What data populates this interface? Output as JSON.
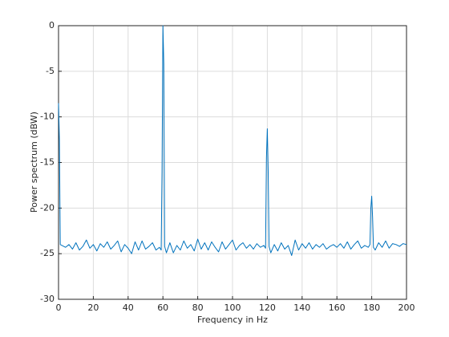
{
  "chart_data": {
    "type": "line",
    "xlabel": "Frequency in Hz",
    "ylabel": "Power spectrum (dBW)",
    "xlim": [
      0,
      200
    ],
    "ylim": [
      -30,
      0
    ],
    "xticks": [
      0,
      20,
      40,
      60,
      80,
      100,
      120,
      140,
      160,
      180,
      200
    ],
    "yticks": [
      -30,
      -25,
      -20,
      -15,
      -10,
      -5,
      0
    ],
    "grid": true,
    "x": [
      0,
      0.5,
      1,
      2,
      4,
      6,
      8,
      10,
      12,
      14,
      16,
      18,
      20,
      22,
      24,
      26,
      28,
      30,
      32,
      34,
      36,
      38,
      40,
      42,
      44,
      46,
      48,
      50,
      52,
      54,
      56,
      58,
      59,
      59.5,
      60,
      60.5,
      61,
      62,
      64,
      66,
      68,
      70,
      72,
      74,
      76,
      78,
      80,
      82,
      84,
      86,
      88,
      90,
      92,
      94,
      96,
      98,
      100,
      102,
      104,
      106,
      108,
      110,
      112,
      114,
      116,
      118,
      119,
      119.5,
      120,
      120.5,
      121,
      122,
      124,
      126,
      128,
      130,
      132,
      134,
      136,
      138,
      140,
      142,
      144,
      146,
      148,
      150,
      152,
      154,
      156,
      158,
      160,
      162,
      164,
      166,
      168,
      170,
      172,
      174,
      176,
      178,
      179,
      179.5,
      180,
      180.5,
      181,
      182,
      184,
      186,
      188,
      190,
      192,
      194,
      196,
      198,
      200
    ],
    "series": [
      {
        "color": "#0072bd",
        "values": [
          -8.5,
          -12.5,
          -24.0,
          -24.1,
          -24.3,
          -24.0,
          -24.5,
          -23.8,
          -24.6,
          -24.2,
          -23.5,
          -24.4,
          -24.0,
          -24.7,
          -23.9,
          -24.3,
          -23.7,
          -24.5,
          -24.1,
          -23.6,
          -24.8,
          -24.0,
          -24.4,
          -25.0,
          -23.7,
          -24.6,
          -23.6,
          -24.5,
          -24.2,
          -23.8,
          -24.6,
          -24.3,
          -24.6,
          -16,
          0,
          -4.2,
          -24.2,
          -24.9,
          -23.8,
          -24.9,
          -24.1,
          -24.6,
          -23.6,
          -24.4,
          -24.0,
          -24.7,
          -23.4,
          -24.5,
          -23.8,
          -24.6,
          -23.7,
          -24.3,
          -24.8,
          -23.7,
          -24.5,
          -24.0,
          -23.5,
          -24.6,
          -24.1,
          -23.8,
          -24.4,
          -24.0,
          -24.5,
          -23.9,
          -24.3,
          -24.1,
          -24.4,
          -14.5,
          -11.3,
          -16,
          -24.2,
          -24.9,
          -24.0,
          -24.7,
          -23.8,
          -24.5,
          -24.1,
          -25.2,
          -23.5,
          -24.6,
          -23.9,
          -24.4,
          -23.8,
          -24.5,
          -24.0,
          -24.3,
          -23.9,
          -24.5,
          -24.2,
          -24.0,
          -24.3,
          -23.9,
          -24.4,
          -23.7,
          -24.5,
          -24.0,
          -23.6,
          -24.4,
          -24.1,
          -24.3,
          -24.0,
          -20,
          -18.7,
          -21,
          -24.3,
          -24.6,
          -23.8,
          -24.3,
          -23.6,
          -24.4,
          -23.9,
          -24.0,
          -24.2,
          -23.9,
          -24.0
        ]
      }
    ]
  }
}
